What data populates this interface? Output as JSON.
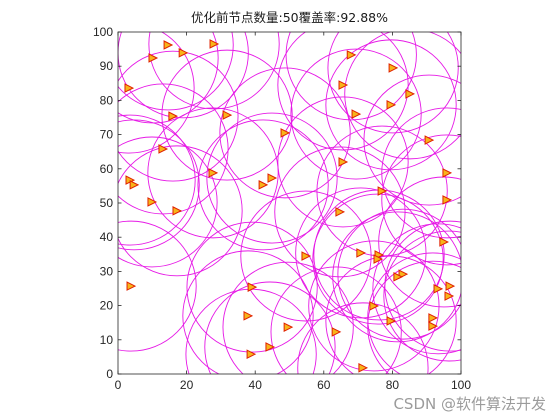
{
  "chart_data": {
    "type": "scatter",
    "title": "优化前节点数量:50覆盖率:92.88%",
    "xlabel": "",
    "ylabel": "",
    "xlim": [
      0,
      100
    ],
    "ylim": [
      0,
      100
    ],
    "xticks": [
      "0",
      "20",
      "40",
      "60",
      "80",
      "100"
    ],
    "yticks": [
      "0",
      "10",
      "20",
      "30",
      "40",
      "50",
      "60",
      "70",
      "80",
      "90",
      "100"
    ],
    "grid": false,
    "coverage_radius": 19,
    "circle_color": "#e619e6",
    "marker_edge_color": "#e02000",
    "marker_fill_color": "#f7b51a",
    "points": [
      [
        14.6,
        96.2
      ],
      [
        28.0,
        96.5
      ],
      [
        10.2,
        92.4
      ],
      [
        19.0,
        93.9
      ],
      [
        68.0,
        93.3
      ],
      [
        80.2,
        89.5
      ],
      [
        3.2,
        83.6
      ],
      [
        65.6,
        84.5
      ],
      [
        85.1,
        81.9
      ],
      [
        79.6,
        78.7
      ],
      [
        69.4,
        76.0
      ],
      [
        31.8,
        75.7
      ],
      [
        16.0,
        75.4
      ],
      [
        48.7,
        70.5
      ],
      [
        90.7,
        68.4
      ],
      [
        13.1,
        65.8
      ],
      [
        65.6,
        62.0
      ],
      [
        27.7,
        58.8
      ],
      [
        95.9,
        58.8
      ],
      [
        3.5,
        56.7
      ],
      [
        44.9,
        57.3
      ],
      [
        4.7,
        55.3
      ],
      [
        42.3,
        55.3
      ],
      [
        77.0,
        53.5
      ],
      [
        95.9,
        50.9
      ],
      [
        9.9,
        50.3
      ],
      [
        17.2,
        47.7
      ],
      [
        64.7,
        47.4
      ],
      [
        95.0,
        38.6
      ],
      [
        76.1,
        34.8
      ],
      [
        54.8,
        34.5
      ],
      [
        70.8,
        35.4
      ],
      [
        75.8,
        33.6
      ],
      [
        83.1,
        29.2
      ],
      [
        81.6,
        28.4
      ],
      [
        3.8,
        25.7
      ],
      [
        39.1,
        25.4
      ],
      [
        96.8,
        25.7
      ],
      [
        93.3,
        24.9
      ],
      [
        96.5,
        22.8
      ],
      [
        74.6,
        19.9
      ],
      [
        37.9,
        17.0
      ],
      [
        79.6,
        15.5
      ],
      [
        91.8,
        16.4
      ],
      [
        91.8,
        14.0
      ],
      [
        49.6,
        13.7
      ],
      [
        63.6,
        12.3
      ],
      [
        44.3,
        7.9
      ],
      [
        38.8,
        5.8
      ],
      [
        71.4,
        1.8
      ]
    ]
  },
  "watermark": "CSDN @软件算法开发"
}
